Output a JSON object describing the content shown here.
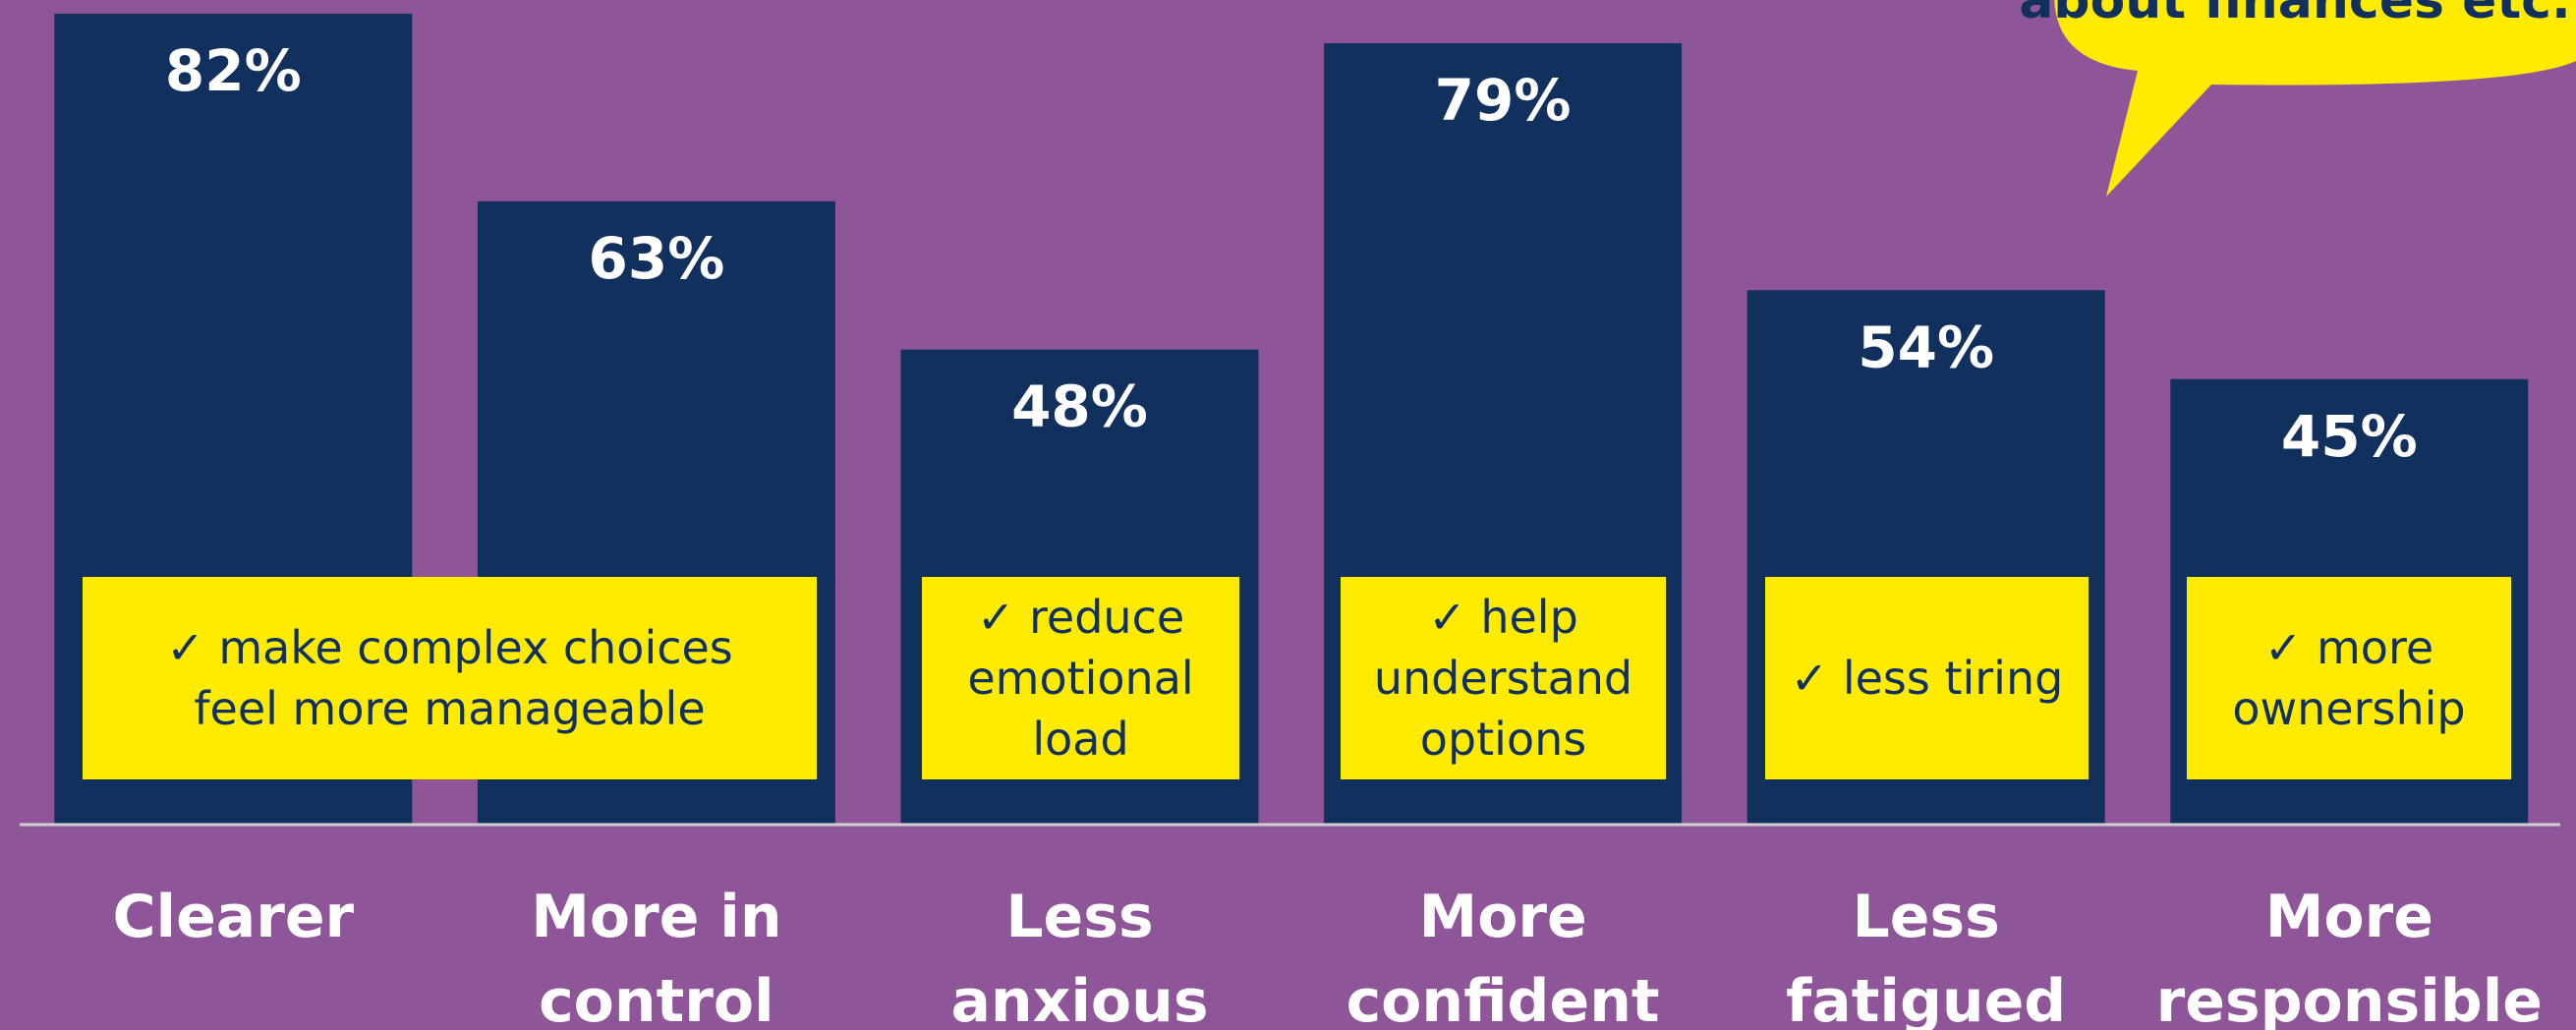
{
  "chart_data": {
    "type": "bar",
    "categories": [
      "Clearer",
      "More in control",
      "Less anxious",
      "More confident",
      "Less fatigued",
      "More responsible"
    ],
    "values": [
      82,
      63,
      48,
      79,
      54,
      45
    ],
    "value_labels": [
      "82%",
      "63%",
      "48%",
      "79%",
      "54%",
      "45%"
    ],
    "color": "#11305e",
    "ylim": [
      0,
      100
    ],
    "annotations": [
      {
        "lines": [
          "✓  make complex choices",
          "feel more manageable"
        ]
      },
      {
        "lines": [
          "✓  reduce",
          "emotional",
          "load"
        ]
      },
      {
        "lines": [
          "✓  help",
          "understand",
          "options"
        ]
      },
      {
        "lines": [
          "✓  less tiring"
        ]
      },
      {
        "lines": [
          "✓  more",
          "ownership"
        ]
      }
    ],
    "callout": "about finances etc."
  }
}
